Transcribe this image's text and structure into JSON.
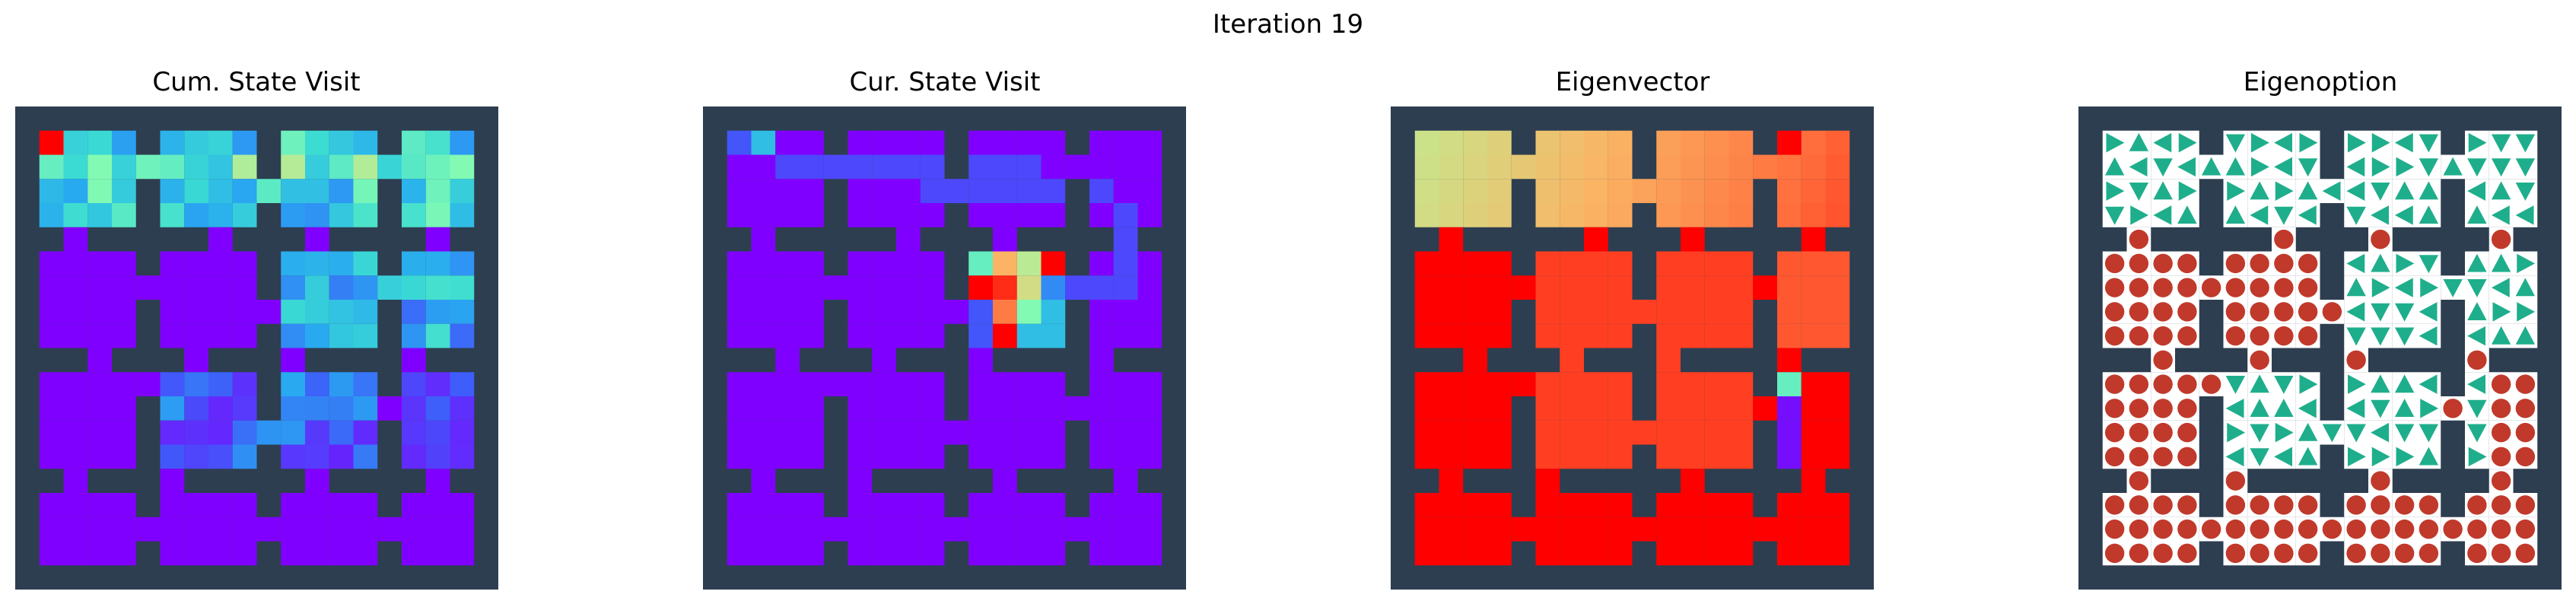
{
  "figure": {
    "suptitle": "Iteration 19",
    "panels": [
      {
        "title": "Cum. State Visit",
        "kind": "heat"
      },
      {
        "title": "Cur. State Visit",
        "kind": "heat"
      },
      {
        "title": "Eigenvector",
        "kind": "heat"
      },
      {
        "title": "Eigenoption",
        "kind": "policy"
      }
    ]
  },
  "colors": {
    "wall": "#2d3e50",
    "background": "#ffffff",
    "arrow": "#1fae8c",
    "terminate": "#c0392b"
  }
}
